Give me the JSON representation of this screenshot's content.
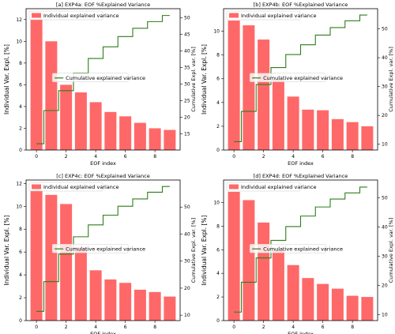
{
  "colors": {
    "bar": "#ff4d4d",
    "line": "#2e7d1a"
  },
  "chart_data": [
    {
      "type": "bar",
      "title": "[a] EXP4a: EOF %Explained Variance",
      "xlabel": "EOF index",
      "ylabel": "Individual Var. Expl. [%]",
      "y2label": "Cumulative Expl. var. [%]",
      "x": [
        0,
        1,
        2,
        3,
        4,
        5,
        6,
        7,
        8,
        9
      ],
      "xticks": [
        "0",
        "2",
        "4",
        "6",
        "8"
      ],
      "bar_series_name": "Individual explained variance",
      "line_series_name": "Cumulative explained variance",
      "values": [
        12.0,
        10.0,
        6.0,
        5.3,
        4.4,
        3.5,
        3.1,
        2.5,
        2.0,
        1.85
      ],
      "cumulative": [
        12.0,
        22.0,
        28.0,
        33.3,
        37.7,
        41.2,
        44.3,
        46.8,
        48.8,
        50.65
      ],
      "ylim": [
        0,
        13
      ],
      "yticks": [
        "0",
        "2",
        "4",
        "6",
        "8",
        "10",
        "12"
      ],
      "y2lim": [
        10.1,
        52.7
      ],
      "y2ticks": [
        "15",
        "20",
        "25",
        "30",
        "35",
        "40",
        "45",
        "50"
      ],
      "y2label_size": "small"
    },
    {
      "type": "bar",
      "title": "[b] EXP4b: EOF %Explained Variance",
      "xlabel": "EOF index",
      "ylabel": "Individual Var. Expl. [%]",
      "y2label": "Cumulative Expl. var. [%]",
      "x": [
        0,
        1,
        2,
        3,
        4,
        5,
        6,
        7,
        8,
        9
      ],
      "xticks": [
        "0",
        "2",
        "4",
        "6",
        "8"
      ],
      "bar_series_name": "Individual explained variance",
      "line_series_name": "Cumulative explained variance",
      "values": [
        10.9,
        10.5,
        9.3,
        5.9,
        4.5,
        3.4,
        3.35,
        2.6,
        2.35,
        2.0
      ],
      "cumulative": [
        10.9,
        21.4,
        30.7,
        36.6,
        41.1,
        44.5,
        47.85,
        50.45,
        52.8,
        54.8
      ],
      "ylim": [
        0,
        11.9
      ],
      "yticks": [
        "0",
        "2",
        "4",
        "6",
        "8",
        "10"
      ],
      "y2lim": [
        8.0,
        57.0
      ],
      "y2ticks": [
        "10",
        "20",
        "30",
        "40",
        "50"
      ],
      "y2label_size": "small"
    },
    {
      "type": "bar",
      "title": "[c] EXP4c: EOF %Explained Variance",
      "xlabel": "EOF index",
      "ylabel": "Individual Var. Expl. [%]",
      "y2label": "Cumulative Expl. var. [%]",
      "x": [
        0,
        1,
        2,
        3,
        4,
        5,
        6,
        7,
        8,
        9
      ],
      "xticks": [
        "0",
        "2",
        "4",
        "6",
        "8"
      ],
      "bar_series_name": "Individual explained variance",
      "line_series_name": "Cumulative explained variance",
      "values": [
        11.4,
        11.0,
        10.2,
        6.4,
        4.4,
        3.6,
        3.3,
        2.7,
        2.5,
        2.1
      ],
      "cumulative": [
        11.4,
        22.4,
        32.6,
        39.0,
        43.4,
        47.0,
        50.3,
        53.0,
        55.5,
        57.6
      ],
      "ylim": [
        0,
        12.3
      ],
      "yticks": [
        "0",
        "2",
        "4",
        "6",
        "8",
        "10",
        "12"
      ],
      "y2lim": [
        8.0,
        60.0
      ],
      "y2ticks": [
        "10",
        "20",
        "30",
        "40",
        "50"
      ],
      "y2label_size": "small"
    },
    {
      "type": "bar",
      "title": "[d] EXP4d: EOF %Explained Variance",
      "xlabel": "EOF index",
      "ylabel": "Individual Var. Expl. [%]",
      "y2label": "Cumulative Expl. var. [%]",
      "x": [
        0,
        1,
        2,
        3,
        4,
        5,
        6,
        7,
        8,
        9
      ],
      "xticks": [
        "0",
        "2",
        "4",
        "6",
        "8"
      ],
      "bar_series_name": "Individual explained variance",
      "line_series_name": "Cumulative explained variance",
      "values": [
        10.9,
        10.2,
        8.3,
        6.0,
        4.7,
        3.6,
        3.1,
        2.7,
        2.1,
        2.0
      ],
      "cumulative": [
        10.9,
        21.1,
        29.4,
        35.4,
        40.1,
        43.7,
        46.8,
        49.5,
        51.6,
        53.6
      ],
      "ylim": [
        0,
        11.9
      ],
      "yticks": [
        "0",
        "2",
        "4",
        "6",
        "8",
        "10"
      ],
      "y2lim": [
        8.0,
        56.0
      ],
      "y2ticks": [
        "10",
        "20",
        "30",
        "40",
        "50"
      ],
      "y2label_size": "small"
    }
  ]
}
